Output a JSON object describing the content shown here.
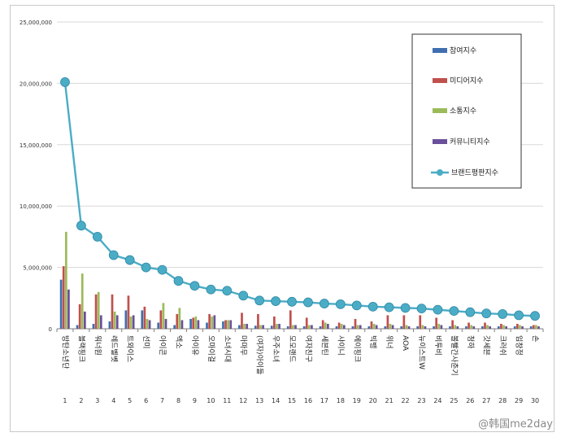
{
  "chart_data": {
    "type": "bar",
    "ylim": [
      0,
      25000000
    ],
    "yticks": [
      "0",
      "5,000,000",
      "10,000,000",
      "15,000,000",
      "20,000,000",
      "25,000,000"
    ],
    "ytick_values": [
      0,
      5000000,
      10000000,
      15000000,
      20000000,
      25000000
    ],
    "legend_position": "top-right",
    "categories": [
      "방탄소년단",
      "블랙핑크",
      "워너원",
      "레드벨벳",
      "트와이스",
      "선미",
      "아이콘",
      "엑소",
      "아이유",
      "오마이걸",
      "소녀시대",
      "마마무",
      "(여자)아이들",
      "우주소녀",
      "모모랜드",
      "여자친구",
      "세븐틴",
      "샤이니",
      "에이핑크",
      "빅뱅",
      "위너",
      "AOA",
      "뉴이스트W",
      "비투비",
      "볼빨간사춘기",
      "청하",
      "갓세븐",
      "크러쉬",
      "임창정",
      "손"
    ],
    "ranks": [
      "1",
      "2",
      "3",
      "4",
      "5",
      "6",
      "7",
      "8",
      "9",
      "10",
      "11",
      "12",
      "13",
      "14",
      "15",
      "16",
      "17",
      "18",
      "19",
      "20",
      "21",
      "22",
      "23",
      "24",
      "25",
      "26",
      "27",
      "28",
      "29",
      "30"
    ],
    "series": [
      {
        "name": "참여지수",
        "color": "#3f6fb0",
        "values": [
          4000000,
          300000,
          400000,
          600000,
          1500000,
          1500000,
          500000,
          300000,
          800000,
          500000,
          600000,
          300000,
          250000,
          250000,
          200000,
          200000,
          200000,
          200000,
          200000,
          200000,
          200000,
          200000,
          200000,
          200000,
          200000,
          200000,
          200000,
          200000,
          200000,
          200000
        ]
      },
      {
        "name": "미디어지수",
        "color": "#c0504d",
        "values": [
          5100000,
          2000000,
          2800000,
          2800000,
          2700000,
          1800000,
          1500000,
          1200000,
          900000,
          1200000,
          700000,
          1300000,
          1200000,
          1000000,
          1500000,
          900000,
          700000,
          500000,
          800000,
          600000,
          1100000,
          1100000,
          1100000,
          900000,
          700000,
          500000,
          500000,
          400000,
          400000,
          300000
        ]
      },
      {
        "name": "소통지수",
        "color": "#9bbb59",
        "values": [
          7900000,
          4500000,
          3000000,
          1400000,
          1000000,
          800000,
          2100000,
          1700000,
          1000000,
          1000000,
          700000,
          400000,
          300000,
          400000,
          300000,
          300000,
          500000,
          400000,
          300000,
          400000,
          400000,
          300000,
          300000,
          400000,
          300000,
          300000,
          300000,
          300000,
          300000,
          300000
        ]
      },
      {
        "name": "커뮤니티지수",
        "color": "#6a4f9a",
        "values": [
          3200000,
          1400000,
          1100000,
          1100000,
          1100000,
          700000,
          800000,
          700000,
          700000,
          1100000,
          700000,
          400000,
          300000,
          400000,
          300000,
          300000,
          400000,
          300000,
          300000,
          300000,
          300000,
          200000,
          200000,
          300000,
          200000,
          200000,
          200000,
          200000,
          200000,
          200000
        ]
      }
    ],
    "line_series": {
      "name": "브랜드평판지수",
      "color": "#4bacc6",
      "values": [
        20100000,
        8400000,
        7500000,
        6000000,
        5600000,
        5000000,
        4800000,
        3900000,
        3500000,
        3200000,
        3100000,
        2700000,
        2300000,
        2250000,
        2200000,
        2150000,
        2050000,
        2000000,
        1900000,
        1800000,
        1750000,
        1700000,
        1650000,
        1550000,
        1450000,
        1350000,
        1250000,
        1200000,
        1100000,
        1050000
      ]
    }
  },
  "watermark": "@韩国me2day"
}
